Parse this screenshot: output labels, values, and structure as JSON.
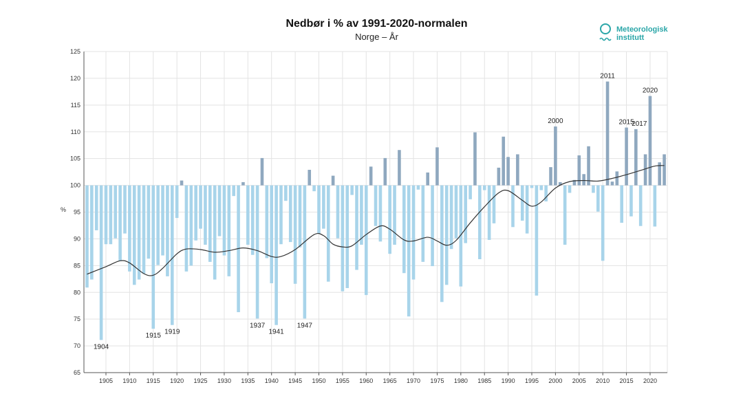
{
  "chart_data": {
    "type": "bar",
    "title": "Nedbør i % av 1991-2020-normalen",
    "subtitle": "Norge – År",
    "ylabel": "%",
    "xlabel": "",
    "ylim": [
      65,
      125
    ],
    "yticks": [
      65,
      70,
      75,
      80,
      85,
      90,
      95,
      100,
      105,
      110,
      115,
      120,
      125
    ],
    "xticks": [
      1905,
      1910,
      1915,
      1920,
      1925,
      1930,
      1935,
      1940,
      1945,
      1950,
      1955,
      1960,
      1965,
      1970,
      1975,
      1980,
      1985,
      1990,
      1995,
      2000,
      2005,
      2010,
      2015,
      2020
    ],
    "baseline": 100,
    "grid": true,
    "colors": {
      "above": "#8fa8bf",
      "below": "#a8d4ea",
      "trend": "#333333"
    },
    "years": [
      1901,
      1902,
      1903,
      1904,
      1905,
      1906,
      1907,
      1908,
      1909,
      1910,
      1911,
      1912,
      1913,
      1914,
      1915,
      1916,
      1917,
      1918,
      1919,
      1920,
      1921,
      1922,
      1923,
      1924,
      1925,
      1926,
      1927,
      1928,
      1929,
      1930,
      1931,
      1932,
      1933,
      1934,
      1935,
      1936,
      1937,
      1938,
      1939,
      1940,
      1941,
      1942,
      1943,
      1944,
      1945,
      1946,
      1947,
      1948,
      1949,
      1950,
      1951,
      1952,
      1953,
      1954,
      1955,
      1956,
      1957,
      1958,
      1959,
      1960,
      1961,
      1962,
      1963,
      1964,
      1965,
      1966,
      1967,
      1968,
      1969,
      1970,
      1971,
      1972,
      1973,
      1974,
      1975,
      1976,
      1977,
      1978,
      1979,
      1980,
      1981,
      1982,
      1983,
      1984,
      1985,
      1986,
      1987,
      1988,
      1989,
      1990,
      1991,
      1992,
      1993,
      1994,
      1995,
      1996,
      1997,
      1998,
      1999,
      2000,
      2001,
      2002,
      2003,
      2004,
      2005,
      2006,
      2007,
      2008,
      2009,
      2010,
      2011,
      2012,
      2013,
      2014,
      2015,
      2016,
      2017,
      2018,
      2019,
      2020,
      2021,
      2022,
      2023
    ],
    "values": [
      80.9,
      82.4,
      91.6,
      71.1,
      89.0,
      89.0,
      90.1,
      85.9,
      91.0,
      83.9,
      81.4,
      82.4,
      83.5,
      86.3,
      73.2,
      85.1,
      86.9,
      83.0,
      73.9,
      93.9,
      100.9,
      83.9,
      85.0,
      89.7,
      91.9,
      88.9,
      85.7,
      82.4,
      90.5,
      86.9,
      83.0,
      98.0,
      76.3,
      100.6,
      88.9,
      87.0,
      75.1,
      105.1,
      86.4,
      81.7,
      73.9,
      89.0,
      97.1,
      89.4,
      81.6,
      88.4,
      75.1,
      102.9,
      98.9,
      91.0,
      91.9,
      82.0,
      101.8,
      90.1,
      80.2,
      80.8,
      98.2,
      84.2,
      88.9,
      79.5,
      103.5,
      92.4,
      89.5,
      105.1,
      87.2,
      88.9,
      106.6,
      83.6,
      75.5,
      82.4,
      99.2,
      85.7,
      102.4,
      84.9,
      107.1,
      78.2,
      81.4,
      88.1,
      90.1,
      81.1,
      89.2,
      97.4,
      109.9,
      86.2,
      99.1,
      89.8,
      92.9,
      103.3,
      109.1,
      105.3,
      92.2,
      105.8,
      93.4,
      91.0,
      99.5,
      79.4,
      99.1,
      97.0,
      103.4,
      111.0,
      100.6,
      88.9,
      98.6,
      101.0,
      105.6,
      102.1,
      107.3,
      98.6,
      95.1,
      85.9,
      119.4,
      100.7,
      102.6,
      93.0,
      110.8,
      94.2,
      110.5,
      92.4,
      105.8,
      116.7,
      92.3,
      104.3,
      105.8
    ],
    "trend": {
      "years": [
        1901,
        1905,
        1908,
        1910,
        1913,
        1915,
        1917,
        1920,
        1922,
        1925,
        1928,
        1931,
        1934,
        1937,
        1940,
        1942,
        1945,
        1949,
        1951,
        1953,
        1955,
        1957,
        1960,
        1963,
        1965,
        1968,
        1970,
        1973,
        1975,
        1977,
        1979,
        1982,
        1985,
        1988,
        1990,
        1993,
        1995,
        1997,
        2000,
        2003,
        2006,
        2009,
        2012,
        2015,
        2018,
        2021,
        2023
      ],
      "values": [
        83.4,
        84.8,
        85.9,
        85.5,
        83.5,
        83.2,
        84.5,
        87.2,
        88.1,
        88.0,
        87.5,
        87.8,
        88.3,
        87.8,
        86.7,
        86.7,
        88.0,
        90.8,
        90.6,
        89.0,
        88.5,
        88.7,
        90.8,
        92.4,
        91.8,
        89.8,
        89.6,
        90.3,
        89.6,
        88.8,
        89.7,
        93.0,
        96.0,
        98.6,
        99.0,
        97.2,
        96.1,
        96.9,
        99.5,
        100.7,
        100.9,
        100.8,
        101.3,
        102.0,
        102.8,
        103.6,
        103.7
      ]
    },
    "annotations": [
      {
        "year": 1904,
        "label": "1904"
      },
      {
        "year": 1915,
        "label": "1915"
      },
      {
        "year": 1919,
        "label": "1919"
      },
      {
        "year": 1937,
        "label": "1937"
      },
      {
        "year": 1941,
        "label": "1941"
      },
      {
        "year": 1947,
        "label": "1947"
      },
      {
        "year": 2000,
        "label": "2000"
      },
      {
        "year": 2011,
        "label": "2011"
      },
      {
        "year": 2015,
        "label": "2015"
      },
      {
        "year": 2017,
        "label": "2017"
      },
      {
        "year": 2020,
        "label": "2020"
      }
    ]
  },
  "logo": {
    "line1": "Meteorologisk",
    "line2": "institutt"
  }
}
